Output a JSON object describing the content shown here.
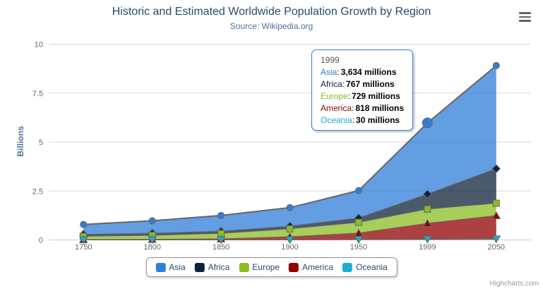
{
  "header": {
    "title": "Historic and Estimated Worldwide Population Growth by Region",
    "subtitle": "Source: Wikipedia.org"
  },
  "chart_data": {
    "type": "area",
    "stacking": "normal",
    "title": "Historic and Estimated Worldwide Population Growth by Region",
    "subtitle": "Source: Wikipedia.org",
    "categories": [
      "1750",
      "1800",
      "1850",
      "1900",
      "1950",
      "1999",
      "2050"
    ],
    "xlabel": "",
    "ylabel": "Billions",
    "ylim": [
      0,
      10
    ],
    "unit": "millions",
    "grid": true,
    "legend_position": "bottom",
    "y_ticks": [
      {
        "value": 0,
        "label": "0"
      },
      {
        "value": 2.5,
        "label": "2.5"
      },
      {
        "value": 5,
        "label": "5"
      },
      {
        "value": 7.5,
        "label": "7.5"
      },
      {
        "value": 10,
        "label": "10"
      }
    ],
    "series": [
      {
        "name": "Asia",
        "color": "#2f7ed8",
        "marker": "circle",
        "values": [
          502,
          635,
          809,
          947,
          1402,
          3634,
          5268
        ]
      },
      {
        "name": "Africa",
        "color": "#0d233a",
        "marker": "diamond",
        "values": [
          106,
          107,
          111,
          133,
          221,
          767,
          1766
        ]
      },
      {
        "name": "Europe",
        "color": "#8bbc21",
        "marker": "square",
        "values": [
          163,
          203,
          276,
          408,
          547,
          729,
          628
        ]
      },
      {
        "name": "America",
        "color": "#910000",
        "marker": "triangle",
        "values": [
          18,
          31,
          54,
          156,
          339,
          818,
          1201
        ]
      },
      {
        "name": "Oceania",
        "color": "#1aadce",
        "marker": "triangle-down",
        "values": [
          2,
          2,
          2,
          6,
          13,
          30,
          46
        ]
      }
    ],
    "hover": {
      "series": "Asia",
      "category": "1999"
    }
  },
  "tooltip": {
    "header": "1999",
    "rows": [
      {
        "name": "Asia",
        "value": "3,634 millions",
        "color": "#2f7ed8"
      },
      {
        "name": "Africa",
        "value": "767 millions",
        "color": "#0d233a"
      },
      {
        "name": "Europe",
        "value": "729 millions",
        "color": "#8bbc21"
      },
      {
        "name": "America",
        "value": "818 millions",
        "color": "#910000"
      },
      {
        "name": "Oceania",
        "value": "30 millions",
        "color": "#1aadce"
      }
    ]
  },
  "legend": {
    "items": [
      {
        "label": "Asia",
        "color": "#2f7ed8"
      },
      {
        "label": "Africa",
        "color": "#0d233a"
      },
      {
        "label": "Europe",
        "color": "#8bbc21"
      },
      {
        "label": "America",
        "color": "#910000"
      },
      {
        "label": "Oceania",
        "color": "#1aadce"
      }
    ]
  },
  "credits": {
    "label": "Highcharts.com"
  },
  "icons": {
    "export_menu": "hamburger-icon"
  },
  "styles": {
    "title_color": "#274b6d",
    "subtitle_color": "#4d759e",
    "axis_label_color": "#666666",
    "axis_title_color": "#4d759e",
    "grid_color": "#d8d8d8",
    "axis_line_color": "#c0d0e0",
    "series_line_color": "#666666",
    "area_fill_opacity": 0.75,
    "legend_text_color": "#274b6d",
    "legend_border_color": "#909090",
    "tooltip_border_color": "#2f7ed8",
    "credits_color": "#999999",
    "export_icon_color": "#666666"
  }
}
